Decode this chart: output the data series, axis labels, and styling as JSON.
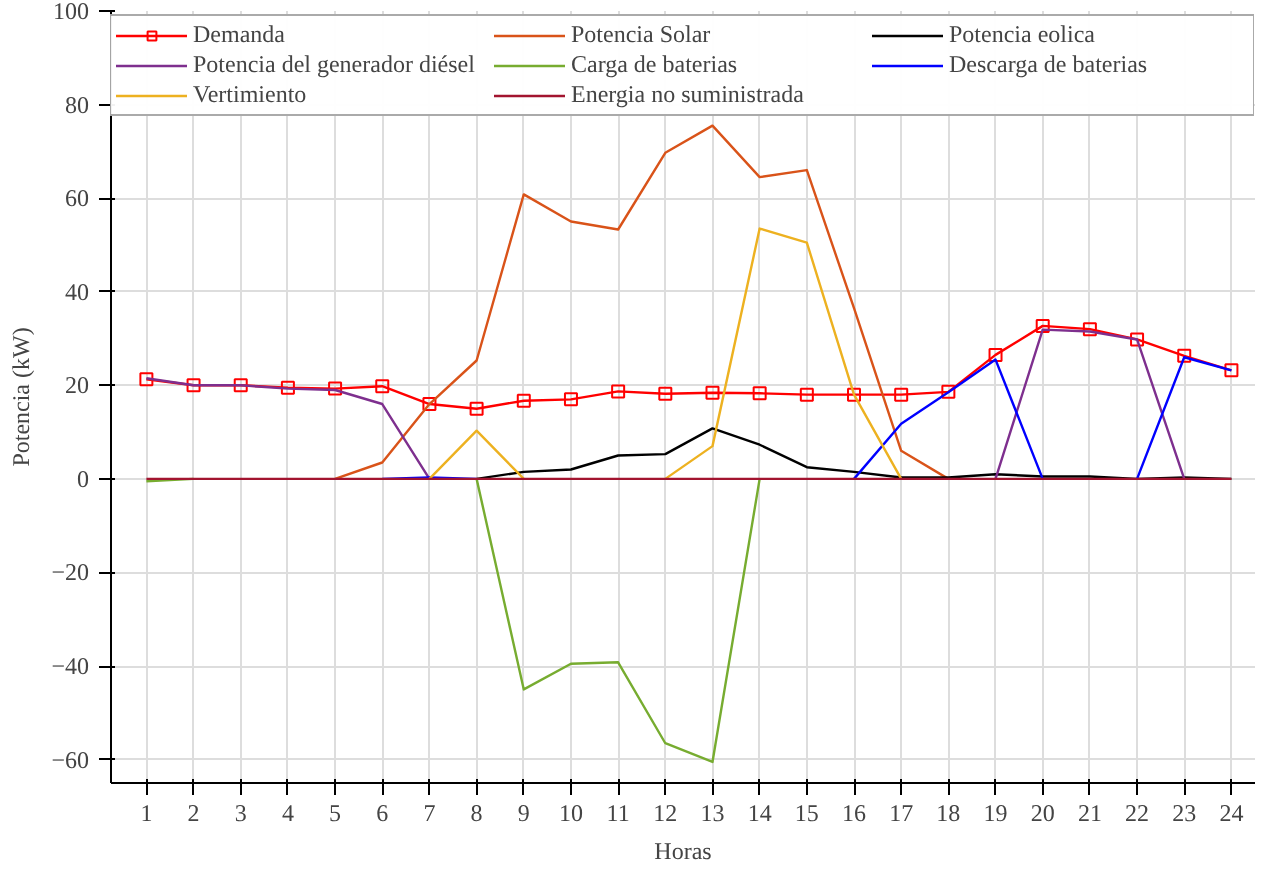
{
  "chart_data": {
    "type": "line",
    "xlabel": "Horas",
    "ylabel": "Potencia (kW)",
    "x": [
      1,
      2,
      3,
      4,
      5,
      6,
      7,
      8,
      9,
      10,
      11,
      12,
      13,
      14,
      15,
      16,
      17,
      18,
      19,
      20,
      21,
      22,
      23,
      24
    ],
    "xlim": [
      0.25,
      24.5
    ],
    "xticks": [
      1,
      2,
      3,
      4,
      5,
      6,
      7,
      8,
      9,
      10,
      11,
      12,
      13,
      14,
      15,
      16,
      17,
      18,
      19,
      20,
      21,
      22,
      23,
      24
    ],
    "ylim": [
      -65,
      100
    ],
    "yticks": [
      -60,
      -40,
      -20,
      0,
      20,
      40,
      60,
      80,
      100
    ],
    "grid": true,
    "legend": "top",
    "marker": "none",
    "line_style": "solid",
    "series": [
      {
        "name": "Demanda",
        "color": "#ff0000",
        "marker": "square",
        "values": [
          21.3,
          20,
          20,
          19.5,
          19.3,
          19.8,
          16,
          15,
          16.7,
          17,
          18.7,
          18.2,
          18.4,
          18.3,
          18,
          18,
          18,
          18.6,
          26.5,
          32.7,
          32,
          29.8,
          26.3,
          23.2
        ]
      },
      {
        "name": "Potencia Solar",
        "color": "#d95319",
        "values": [
          null,
          null,
          null,
          null,
          0,
          3.5,
          16,
          25.3,
          60.8,
          55,
          53.3,
          69.7,
          75.5,
          64.5,
          66,
          36.5,
          6,
          0,
          null,
          null,
          null,
          null,
          null,
          null
        ]
      },
      {
        "name": "Potencia eolica",
        "color": "#000000",
        "values": [
          null,
          null,
          null,
          null,
          null,
          null,
          null,
          0,
          1.5,
          2,
          5,
          5.3,
          10.8,
          7.3,
          2.5,
          1.5,
          0.3,
          0.3,
          1,
          0.5,
          0.5,
          0,
          0.3,
          0
        ]
      },
      {
        "name": "Potencia del generador diésel",
        "color": "#7e2f8e",
        "values": [
          21.5,
          20,
          20,
          19.3,
          19,
          16,
          0,
          null,
          null,
          null,
          null,
          null,
          null,
          null,
          null,
          null,
          null,
          null,
          0,
          31.9,
          31.5,
          29.8,
          0,
          null
        ]
      },
      {
        "name": "Carga de baterias",
        "color": "#77ac30",
        "values": [
          -0.5,
          0,
          null,
          null,
          null,
          null,
          null,
          0,
          -45,
          -39.5,
          -39.2,
          -56.5,
          -60.5,
          0,
          null,
          null,
          null,
          null,
          null,
          null,
          null,
          null,
          null,
          null
        ]
      },
      {
        "name": "Descarga de baterias",
        "color": "#0000ff",
        "values": [
          null,
          null,
          null,
          null,
          null,
          0,
          0.3,
          0,
          null,
          null,
          null,
          null,
          null,
          null,
          null,
          0,
          11.8,
          18.5,
          25.5,
          0,
          null,
          0,
          26,
          23.2
        ]
      },
      {
        "name": "Vertimiento",
        "color": "#edb120",
        "values": [
          null,
          null,
          null,
          null,
          null,
          null,
          0,
          10.3,
          0,
          null,
          null,
          0,
          7,
          53.5,
          50.5,
          18,
          0,
          null,
          null,
          null,
          null,
          null,
          null,
          null
        ]
      },
      {
        "name": "Energia no suministrada",
        "color": "#a2142f",
        "values": [
          0,
          0,
          0,
          0,
          0,
          0,
          0,
          0,
          0,
          0,
          0,
          0,
          0,
          0,
          0,
          0,
          0,
          0,
          0,
          0,
          0,
          0,
          0,
          0
        ]
      }
    ]
  }
}
